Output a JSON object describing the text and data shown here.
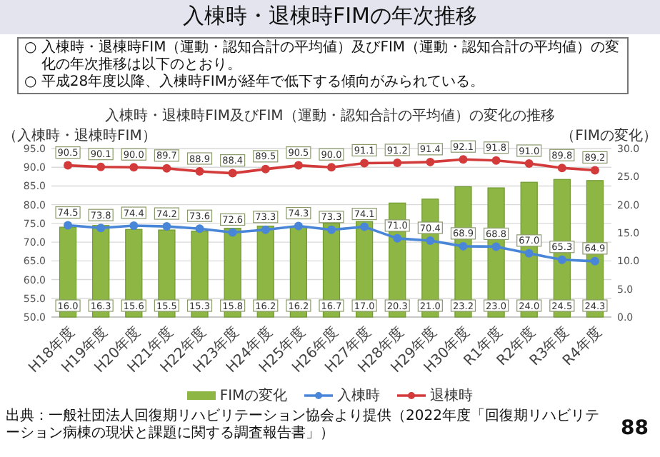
{
  "chart_data": {
    "type": "bar",
    "title": "入棟時・退棟時FIMの年次推移",
    "subtitle": "入棟時・退棟時FIM及びFIM（運動・認知合計の平均値）の変化の推移",
    "ylabel": "（入棟時・退棟時FIM）",
    "y2label": "（FIMの変化）",
    "annotations": [
      "○ 入棟時・退棟時FIM（運動・認知合計の平均値）及びFIM（運動・認知合計の平均値）の変化の年次推移は以下のとおり。",
      "○ 平成28年度以降、入棟時FIMが経年で低下する傾向がみられている。",
      "出典：一般社団法人回復期リハビリテーション協会より提供（2022年度「回復期リハビリテーション病棟の現状と課題に関する調査報告書」）",
      "88"
    ],
    "categories": [
      "H18年度",
      "H19年度",
      "H20年度",
      "H21年度",
      "H22年度",
      "H23年度",
      "H24年度",
      "H25年度",
      "H26年度",
      "H27年度",
      "H28年度",
      "H29年度",
      "H30年度",
      "R1年度",
      "R2年度",
      "R3年度",
      "R4年度"
    ],
    "series": [
      {
        "name": "FIMの変化",
        "axis": "y2",
        "color": "#8db645",
        "values": [
          16.0,
          16.3,
          15.6,
          15.5,
          15.3,
          15.8,
          16.2,
          16.2,
          16.7,
          17.0,
          20.3,
          21.0,
          23.2,
          23.0,
          24.0,
          24.5,
          24.3
        ],
        "value_labels": [
          "16.0",
          "16.3",
          "15.6",
          "15.5",
          "15.3",
          "15.8",
          "16.2",
          "16.2",
          "16.7",
          "17.0",
          "20.3",
          "21.0",
          "23.2",
          "23.0",
          "24.0",
          "24.5",
          "24.3"
        ]
      },
      {
        "name": "入棟時",
        "type": "line",
        "color": "#4a86d8",
        "values": [
          74.5,
          73.8,
          74.4,
          74.2,
          73.6,
          72.6,
          73.3,
          74.3,
          73.3,
          74.1,
          71.0,
          70.4,
          68.9,
          68.8,
          67.0,
          65.3,
          64.9
        ],
        "value_labels": [
          "74.5",
          "73.8",
          "74.4",
          "74.2",
          "73.6",
          "72.6",
          "73.3",
          "74.3",
          "73.3",
          "74.1",
          "71.0",
          "70.4",
          "68.9",
          "68.8",
          "67.0",
          "65.3",
          "64.9"
        ]
      },
      {
        "name": "退棟時",
        "type": "line",
        "color": "#d33b3b",
        "values": [
          90.5,
          90.1,
          90.0,
          89.7,
          88.9,
          88.4,
          89.5,
          90.5,
          90.0,
          91.1,
          91.2,
          91.4,
          92.1,
          91.8,
          91.0,
          89.8,
          89.2
        ],
        "value_labels": [
          "90.5",
          "90.1",
          "90.0",
          "89.7",
          "88.9",
          "88.4",
          "89.5",
          "90.5",
          "90.0",
          "91.1",
          "91.2",
          "91.4",
          "92.1",
          "91.8",
          "91.0",
          "89.8",
          "89.2"
        ]
      }
    ],
    "ylim": [
      50,
      95
    ],
    "yticks": [
      {
        "value": 50,
        "label": "50.0"
      },
      {
        "value": 55,
        "label": "55.0"
      },
      {
        "value": 60,
        "label": "60.0"
      },
      {
        "value": 65,
        "label": "65.0"
      },
      {
        "value": 70,
        "label": "70.0"
      },
      {
        "value": 75,
        "label": "75.0"
      },
      {
        "value": 80,
        "label": "80.0"
      },
      {
        "value": 85,
        "label": "85.0"
      },
      {
        "value": 90,
        "label": "90.0"
      },
      {
        "value": 95,
        "label": "95.0"
      }
    ],
    "y2lim": [
      0,
      30
    ],
    "y2ticks": [
      {
        "value": 0,
        "label": "0.0"
      },
      {
        "value": 5,
        "label": "5.0"
      },
      {
        "value": 10,
        "label": "10.0"
      },
      {
        "value": 15,
        "label": "15.0"
      },
      {
        "value": 20,
        "label": "20.0"
      },
      {
        "value": 25,
        "label": "25.0"
      },
      {
        "value": 30,
        "label": "30.0"
      }
    ],
    "grid": "y",
    "legend": "bottom",
    "marker": "circle",
    "line_style": "solid"
  }
}
